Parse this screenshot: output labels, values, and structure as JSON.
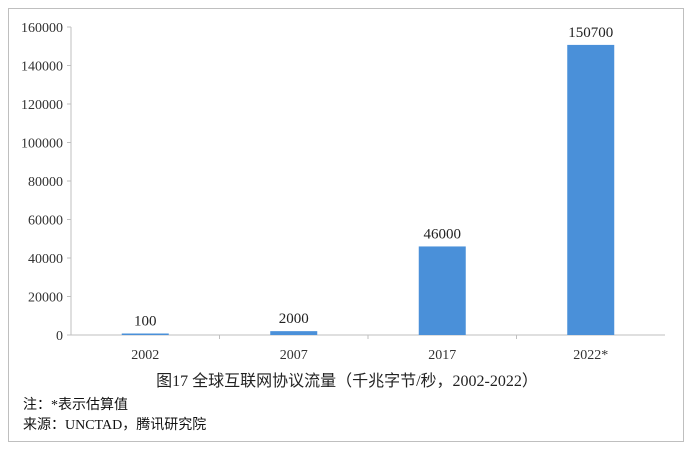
{
  "chart_data": {
    "type": "bar",
    "categories": [
      "2002",
      "2007",
      "2017",
      "2022*"
    ],
    "values": [
      100,
      2000,
      46000,
      150700
    ],
    "data_labels": [
      "100",
      "2000",
      "46000",
      "150700"
    ],
    "y_ticks": [
      "0",
      "20000",
      "40000",
      "60000",
      "80000",
      "100000",
      "120000",
      "140000",
      "160000"
    ],
    "ylim": [
      0,
      160000
    ],
    "grid": false,
    "bar_color": "#4a90d9"
  },
  "caption": "图17   全球互联网协议流量（千兆字节/秒，2002-2022）",
  "notes": {
    "estimate": "注：*表示估算值",
    "source": "来源：UNCTAD，腾讯研究院"
  }
}
